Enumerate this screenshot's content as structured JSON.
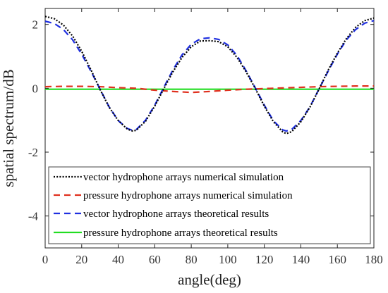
{
  "chart_data": {
    "type": "line",
    "xlabel": "angle(deg)",
    "ylabel": "spatial spectrum/dB",
    "xlim": [
      0,
      180
    ],
    "ylim": [
      -5,
      2.5
    ],
    "xticks": [
      0,
      20,
      40,
      60,
      80,
      100,
      120,
      140,
      160,
      180
    ],
    "yticks": [
      -4,
      -2,
      0,
      2
    ],
    "grid": false,
    "legend_position": "bottom",
    "series": [
      {
        "name": "vector hydrophone arrays numerical simulation",
        "color": "#000000",
        "dash": "dotted",
        "x": [
          0,
          5,
          10,
          15,
          20,
          25,
          30,
          35,
          40,
          45,
          48,
          50,
          55,
          60,
          65,
          70,
          75,
          80,
          85,
          90,
          95,
          100,
          105,
          110,
          115,
          120,
          125,
          130,
          132,
          135,
          140,
          145,
          150,
          155,
          160,
          165,
          170,
          175,
          180
        ],
        "y": [
          2.25,
          2.18,
          1.98,
          1.64,
          1.16,
          0.59,
          -0.03,
          -0.59,
          -1.01,
          -1.28,
          -1.34,
          -1.31,
          -1.03,
          -0.56,
          -0.01,
          0.52,
          0.97,
          1.3,
          1.48,
          1.49,
          1.46,
          1.3,
          0.97,
          0.52,
          0.0,
          -0.56,
          -1.05,
          -1.36,
          -1.42,
          -1.36,
          -1.05,
          -0.59,
          -0.02,
          0.57,
          1.1,
          1.56,
          1.91,
          2.12,
          2.2
        ]
      },
      {
        "name": "pressure hydrophone arrays numerical simulation",
        "color": "#e0301e",
        "dash": "dashed",
        "x": [
          0,
          10,
          20,
          30,
          40,
          50,
          60,
          70,
          80,
          90,
          100,
          110,
          120,
          130,
          140,
          150,
          160,
          170,
          180
        ],
        "y": [
          0.05,
          0.06,
          0.06,
          0.05,
          0.02,
          0.0,
          -0.06,
          -0.1,
          -0.13,
          -0.1,
          -0.06,
          -0.03,
          -0.01,
          0.01,
          0.03,
          0.05,
          0.06,
          0.07,
          0.07
        ]
      },
      {
        "name": "vector hydrophone arrays theoretical results",
        "color": "#1f2fe0",
        "dash": "dashed",
        "x": [
          0,
          5,
          10,
          15,
          20,
          25,
          30,
          35,
          40,
          45,
          48,
          50,
          55,
          60,
          65,
          70,
          75,
          80,
          85,
          90,
          95,
          100,
          105,
          110,
          115,
          120,
          125,
          130,
          132,
          135,
          140,
          145,
          150,
          155,
          160,
          165,
          170,
          175,
          180
        ],
        "y": [
          2.1,
          2.03,
          1.84,
          1.52,
          1.07,
          0.54,
          -0.02,
          -0.58,
          -1.01,
          -1.26,
          -1.32,
          -1.29,
          -1.0,
          -0.53,
          0.03,
          0.58,
          1.05,
          1.38,
          1.55,
          1.58,
          1.53,
          1.36,
          1.03,
          0.55,
          0.02,
          -0.53,
          -1.02,
          -1.3,
          -1.34,
          -1.29,
          -1.01,
          -0.58,
          -0.02,
          0.54,
          1.07,
          1.52,
          1.84,
          2.04,
          2.12
        ]
      },
      {
        "name": "pressure hydrophone arrays theoretical results",
        "color": "#22dd22",
        "dash": "solid",
        "x": [
          0,
          180
        ],
        "y": [
          -0.03,
          -0.03
        ]
      }
    ]
  }
}
